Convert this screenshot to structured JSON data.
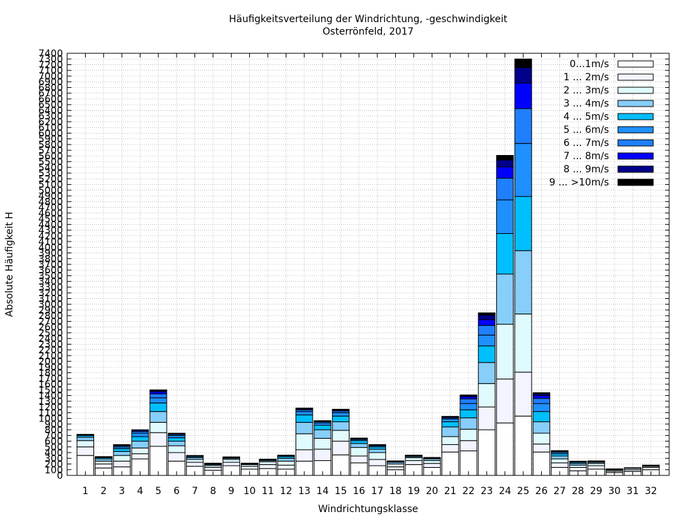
{
  "chart_data": {
    "type": "bar",
    "stacked": true,
    "title": "Häufigkeitsverteilung der Windrichtung, -geschwindigkeit",
    "subtitle": "Osterrönfeld, 2017",
    "xlabel": "Windrichtungsklasse",
    "ylabel": "Absolute Häufigkeit H",
    "ylim": [
      0,
      7400
    ],
    "ytick_step": 100,
    "grid": true,
    "legend_position": "top-right",
    "categories": [
      "1",
      "2",
      "3",
      "4",
      "5",
      "6",
      "7",
      "8",
      "9",
      "10",
      "11",
      "12",
      "13",
      "14",
      "15",
      "16",
      "17",
      "18",
      "19",
      "20",
      "21",
      "22",
      "23",
      "24",
      "25",
      "26",
      "27",
      "28",
      "29",
      "30",
      "31",
      "32"
    ],
    "series": [
      {
        "name": "0...1m/s",
        "color": "#ffffff",
        "values": [
          350,
          130,
          150,
          290,
          510,
          250,
          160,
          90,
          170,
          110,
          120,
          110,
          250,
          260,
          360,
          220,
          170,
          100,
          190,
          140,
          410,
          430,
          800,
          920,
          1040,
          410,
          140,
          80,
          110,
          50,
          70,
          100
        ]
      },
      {
        "name": "1 ... 2m/s",
        "color": "#f2f4ff",
        "values": [
          150,
          70,
          100,
          90,
          240,
          150,
          70,
          50,
          60,
          50,
          70,
          70,
          200,
          200,
          240,
          120,
          110,
          50,
          70,
          70,
          130,
          180,
          400,
          770,
          770,
          140,
          80,
          60,
          60,
          25,
          30,
          40
        ]
      },
      {
        "name": "2 ... 3m/s",
        "color": "#e0fbfd",
        "values": [
          110,
          50,
          100,
          100,
          180,
          120,
          50,
          30,
          50,
          30,
          50,
          70,
          280,
          190,
          190,
          150,
          120,
          50,
          50,
          50,
          140,
          200,
          410,
          960,
          1020,
          190,
          70,
          40,
          40,
          20,
          25,
          20
        ]
      },
      {
        "name": "3 ... 4m/s",
        "color": "#87cefa",
        "values": [
          60,
          40,
          70,
          120,
          190,
          80,
          30,
          20,
          20,
          10,
          20,
          50,
          200,
          150,
          150,
          70,
          60,
          30,
          20,
          30,
          170,
          200,
          370,
          880,
          1110,
          200,
          50,
          30,
          20,
          10,
          5,
          10
        ]
      },
      {
        "name": "4 ... 5m/s",
        "color": "#00bfff",
        "values": [
          30,
          20,
          50,
          80,
          150,
          60,
          20,
          10,
          10,
          10,
          10,
          30,
          130,
          80,
          100,
          50,
          40,
          10,
          10,
          10,
          90,
          140,
          290,
          710,
          950,
          180,
          40,
          20,
          10,
          5,
          5,
          5
        ]
      },
      {
        "name": "5 ... 6m/s",
        "color": "#1e90ff",
        "values": [
          10,
          10,
          30,
          60,
          90,
          40,
          10,
          5,
          5,
          5,
          5,
          15,
          60,
          40,
          60,
          20,
          20,
          5,
          5,
          5,
          50,
          110,
          190,
          590,
          930,
          140,
          25,
          10,
          5,
          5,
          0,
          5
        ]
      },
      {
        "name": "6 ... 7m/s",
        "color": "#1e7fff",
        "values": [
          5,
          5,
          20,
          30,
          70,
          20,
          5,
          5,
          5,
          0,
          5,
          5,
          30,
          20,
          30,
          10,
          10,
          5,
          5,
          5,
          20,
          80,
          170,
          380,
          610,
          90,
          15,
          5,
          5,
          0,
          0,
          0
        ]
      },
      {
        "name": "7 ... 8m/s",
        "color": "#0000ff",
        "values": [
          5,
          5,
          10,
          20,
          40,
          10,
          5,
          5,
          5,
          0,
          5,
          5,
          15,
          10,
          15,
          10,
          5,
          5,
          5,
          5,
          15,
          40,
          100,
          200,
          450,
          50,
          10,
          5,
          5,
          0,
          0,
          0
        ]
      },
      {
        "name": "8 ... 9m/s",
        "color": "#00008b",
        "values": [
          0,
          0,
          10,
          10,
          20,
          10,
          0,
          0,
          0,
          0,
          0,
          0,
          10,
          5,
          10,
          5,
          5,
          0,
          0,
          0,
          5,
          20,
          80,
          120,
          270,
          30,
          5,
          0,
          0,
          0,
          0,
          0
        ]
      },
      {
        "name": "9 ... >10m/s",
        "color": "#000000",
        "values": [
          0,
          0,
          0,
          0,
          10,
          0,
          0,
          0,
          0,
          0,
          0,
          0,
          5,
          5,
          5,
          0,
          0,
          0,
          0,
          0,
          5,
          10,
          40,
          80,
          150,
          20,
          0,
          0,
          0,
          0,
          0,
          0
        ]
      }
    ]
  }
}
